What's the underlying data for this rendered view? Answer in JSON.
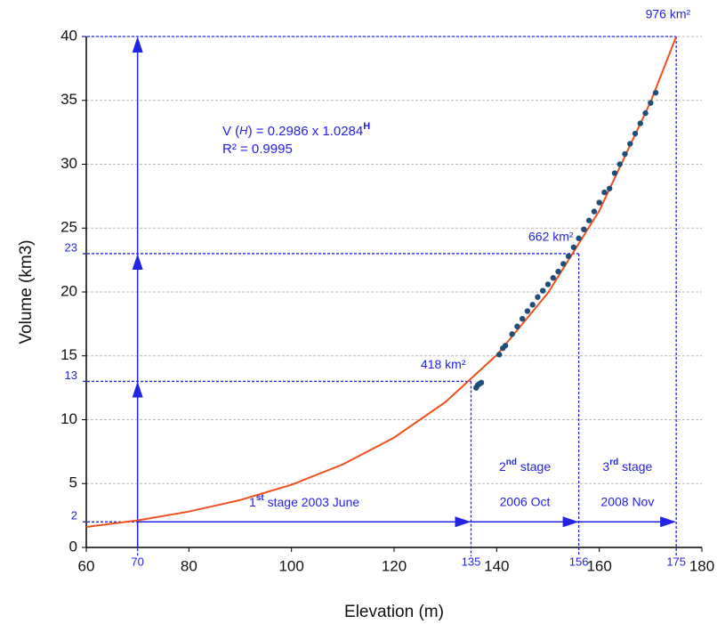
{
  "chart_data": {
    "type": "scatter",
    "xlabel": "Elevation (m)",
    "ylabel": "Volume (km3)",
    "xlim": [
      60,
      180
    ],
    "xticks": [
      60,
      80,
      100,
      120,
      140,
      160,
      180
    ],
    "ylim": [
      0,
      40
    ],
    "yticks": [
      0,
      5,
      10,
      15,
      20,
      25,
      30,
      35,
      40
    ],
    "grid": true,
    "series": [
      {
        "kind": "line",
        "color": "#f0501e",
        "x": [
          60,
          70,
          80,
          90,
          100,
          110,
          120,
          130,
          140,
          150,
          160,
          170,
          175
        ],
        "values": [
          1.6,
          2.12,
          2.81,
          3.71,
          4.91,
          6.5,
          8.6,
          11.38,
          15.06,
          19.93,
          26.36,
          34.88,
          40
        ]
      },
      {
        "kind": "scatter",
        "color": "#1f4e79",
        "x": [
          136,
          136.3,
          136.6,
          137,
          140.5,
          141.2,
          141.7,
          143,
          144,
          145,
          146,
          147,
          148,
          149,
          150,
          151,
          152,
          153,
          154,
          155,
          156,
          157,
          158,
          159,
          160,
          161,
          162,
          163,
          164,
          165,
          166,
          167,
          168,
          169,
          170,
          171
        ],
        "values": [
          12.5,
          12.7,
          12.8,
          12.9,
          15.1,
          15.6,
          15.8,
          16.7,
          17.3,
          17.9,
          18.5,
          19.0,
          19.6,
          20.1,
          20.6,
          21.1,
          21.6,
          22.2,
          22.8,
          23.5,
          24.2,
          24.9,
          25.6,
          26.3,
          27.0,
          27.8,
          28.1,
          29.3,
          30.0,
          30.8,
          31.6,
          32.4,
          33.2,
          34.0,
          34.8,
          35.6
        ]
      }
    ],
    "equation": [
      {
        "text": "V (",
        "style": "normal"
      },
      {
        "text": "H",
        "style": "italic"
      },
      {
        "text": ") = 0.2986 x 1.0284",
        "style": "normal"
      },
      {
        "text": "H",
        "style": "sup"
      }
    ],
    "r_squared": "R² = 0.9995",
    "guide_color": "#2323e6",
    "levels": [
      {
        "x": 70,
        "y": 2
      },
      {
        "x": 135,
        "y": 13,
        "area": "418 km²"
      },
      {
        "x": 156,
        "y": 23,
        "area": "662 km²"
      },
      {
        "x": 175,
        "y": 40,
        "area": "976 km²"
      }
    ],
    "stages": [
      {
        "name": [
          {
            "text": "1",
            "style": "normal"
          },
          {
            "text": "st",
            "style": "sup"
          },
          {
            "text": " stage 2003 June",
            "style": "normal"
          }
        ]
      },
      {
        "name": [
          {
            "text": "2",
            "style": "normal"
          },
          {
            "text": "nd",
            "style": "sup"
          },
          {
            "text": " stage",
            "style": "normal"
          }
        ],
        "date": "2006 Oct"
      },
      {
        "name": [
          {
            "text": "3",
            "style": "normal"
          },
          {
            "text": "rd",
            "style": "sup"
          },
          {
            "text": " stage",
            "style": "normal"
          }
        ],
        "date": "2008 Nov"
      }
    ]
  }
}
